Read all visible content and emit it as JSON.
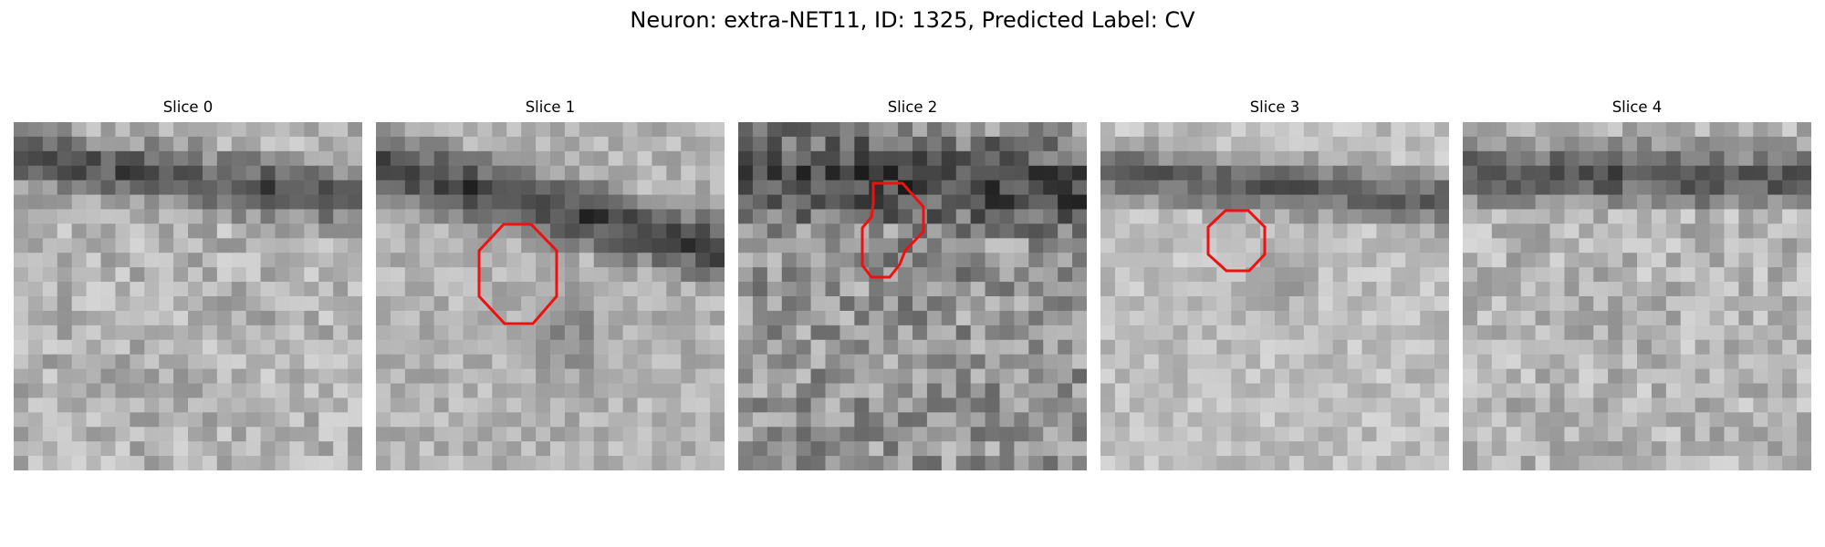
{
  "figure": {
    "title": "Neuron: extra-NET11, ID: 1325, Predicted Label: CV"
  },
  "panels": [
    {
      "title": "Slice 0",
      "has_outline": false
    },
    {
      "title": "Slice 1",
      "has_outline": true
    },
    {
      "title": "Slice 2",
      "has_outline": true
    },
    {
      "title": "Slice 3",
      "has_outline": true
    },
    {
      "title": "Slice 4",
      "has_outline": false
    }
  ],
  "colors": {
    "outline": "#ee1111",
    "background": "#ffffff"
  }
}
